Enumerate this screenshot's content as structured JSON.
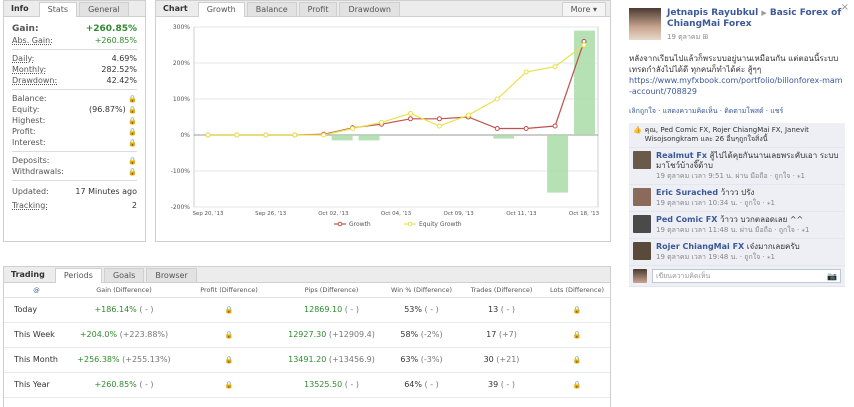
{
  "info": {
    "tabs": [
      "Info",
      "Stats",
      "General"
    ],
    "gain_label": "Gain:",
    "gain_value": "+260.85%",
    "abs_gain_label": "Abs. Gain:",
    "abs_gain_value": "+260.85%",
    "daily_label": "Daily:",
    "daily_value": "4.69%",
    "monthly_label": "Monthly:",
    "monthly_value": "282.52%",
    "drawdown_label": "Drawdown:",
    "drawdown_value": "42.42%",
    "balance_label": "Balance:",
    "equity_label": "Equity:",
    "equity_value": "(96.87%)",
    "highest_label": "Highest:",
    "profit_label": "Profit:",
    "interest_label": "Interest:",
    "deposits_label": "Deposits:",
    "withdrawals_label": "Withdrawals:",
    "updated_label": "Updated:",
    "updated_value": "17 Minutes ago",
    "tracking_label": "Tracking:",
    "tracking_value": "2",
    "lock_icon": "lock-icon"
  },
  "chart_panel": {
    "title": "Chart",
    "tabs": [
      "Growth",
      "Balance",
      "Profit",
      "Drawdown"
    ],
    "more_label": "More",
    "more_icon": "dropdown-arrow-icon"
  },
  "chart_data": {
    "type": "line",
    "y_ticks": [
      "300%",
      "200%",
      "100%",
      "0%",
      "-100%",
      "-200%"
    ],
    "ylim": [
      -200,
      300
    ],
    "x_ticks": [
      "Sep 20, '13",
      "Sep 26, '13",
      "Oct 02, '13",
      "Oct 04, '13",
      "Oct 09, '13",
      "Oct 11, '13",
      "Oct 18, '13"
    ],
    "series": [
      {
        "name": "Growth",
        "color": "#c0504d",
        "values": [
          0,
          0,
          0,
          0,
          2,
          20,
          30,
          45,
          45,
          50,
          18,
          18,
          25,
          260
        ]
      },
      {
        "name": "Equity Growth",
        "color": "#e8e24a",
        "values": [
          0,
          0,
          0,
          0,
          0,
          18,
          35,
          60,
          25,
          55,
          100,
          175,
          190,
          250
        ]
      }
    ],
    "bars": [
      0,
      0,
      0,
      0,
      0,
      -15,
      -15,
      0,
      0,
      0,
      0,
      -10,
      0,
      -160,
      290
    ],
    "bar_color": "#a8dca8"
  },
  "trading": {
    "tabs": [
      "Trading",
      "Periods",
      "Goals",
      "Browser"
    ],
    "headers": [
      "@",
      "Gain (Difference)",
      "Profit (Difference)",
      "Pips (Difference)",
      "Win % (Difference)",
      "Trades (Difference)",
      "Lots (Difference)"
    ],
    "rows": [
      {
        "period": "Today",
        "gain": "+186.14%",
        "gain_diff": "( - )",
        "pips": "12869.10",
        "pips_diff": "( - )",
        "win": "53%",
        "win_diff": "( - )",
        "trades": "13",
        "trades_diff": "( - )"
      },
      {
        "period": "This Week",
        "gain": "+204.0%",
        "gain_diff": "(+223.88%)",
        "pips": "12927.30",
        "pips_diff": "(+12909.4)",
        "win": "58%",
        "win_diff": "(-2%)",
        "trades": "17",
        "trades_diff": "(+7)"
      },
      {
        "period": "This Month",
        "gain": "+256.38%",
        "gain_diff": "(+255.13%)",
        "pips": "13491.20",
        "pips_diff": "(+13456.9)",
        "win": "63%",
        "win_diff": "(-3%)",
        "trades": "30",
        "trades_diff": "(+21)"
      },
      {
        "period": "This Year",
        "gain": "+260.85%",
        "gain_diff": "( - )",
        "pips": "13525.50",
        "pips_diff": "( - )",
        "win": "64%",
        "win_diff": "( - )",
        "trades": "39",
        "trades_diff": "( - )"
      }
    ]
  },
  "facebook": {
    "close_glyph": "×",
    "author": "Jetnapis Rayubkul",
    "group": "Basic Forex of ChiangMai Forex",
    "date": "19 ตุลาคม",
    "post_text": "หลังจากเรียนไปแล้วก็พระบบอยู่นานเหมือนกัน แต่ตอนนี้ระบบเทรดกำลังไปได้ดี ทุกคนก็ทำได้ค่ะ สู้ๆๆ",
    "post_link": "https://www.myfxbook.com/portfolio/billonforex-mam-account/708829",
    "actions": "เลิกถูกใจ · แสดงความคิดเห็น · ติดตามโพสต์ · แชร์",
    "likes": "คุณ, Ped Comic FX, Rojer ChiangMai FX, Janevit Wisojsongkram และ 26 อื่นๆถูกใจสิ่งนี้",
    "comments": [
      {
        "name": "Realmut Fx",
        "text": "สู้ไปได้คุยกันนานเลยพระคับเอา ระบบมาโชว์บ้างจิ๊ด้าบ",
        "meta": "19 ตุลาคม เวลา 9:51 น. ผ่าน มือถือ · ถูกใจ · ⁎1"
      },
      {
        "name": "Eric Surached",
        "text": "ว้าวว ปรัง",
        "meta": "19 ตุลาคม เวลา 10:34 น. · ถูกใจ · ⁎1"
      },
      {
        "name": "Ped Comic FX",
        "text": "ว้าวว บวกตลอดเลย ^^",
        "meta": "19 ตุลาคม เวลา 11:48 น. ผ่าน มือถือ · ถูกใจ · ⁎1"
      },
      {
        "name": "Rojer ChiangMai FX",
        "text": "เจ๋งมากเลยครับ",
        "meta": "19 ตุลาคม เวลา 19:48 น. · ถูกใจ · ⁎1"
      }
    ],
    "comment_placeholder": "เขียนความคิดเห็น",
    "camera_icon": "camera-icon"
  }
}
